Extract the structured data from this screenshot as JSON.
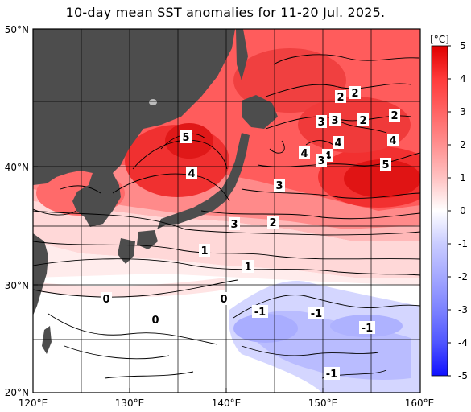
{
  "title": "10-day mean SST anomalies for 11-20 Jul. 2025.",
  "colors": {
    "land": "#4d4d4d",
    "grid": "#000000",
    "contour": "#000000"
  },
  "map": {
    "lat_ticks": [
      "50°N",
      "40°N",
      "30°N",
      "20°N"
    ],
    "lon_ticks": [
      "120°E",
      "130°E",
      "140°E",
      "150°E",
      "160°E"
    ]
  },
  "colorbar": {
    "unit": "[°C]",
    "labels": [
      "5",
      "4",
      "3",
      "2",
      "1",
      "0",
      "-1",
      "-2",
      "-3",
      "-4",
      "-5"
    ],
    "stops": [
      "#e00000",
      "#ff3a3a",
      "#ff7a7a",
      "#ffb0b0",
      "#ffe0e0",
      "#ffffff",
      "#e0e2ff",
      "#b8bcff",
      "#8e93ff",
      "#5c62ff",
      "#1010ff"
    ]
  },
  "contour_labels": [
    "5",
    "4",
    "2",
    "2",
    "3",
    "3",
    "2",
    "2",
    "4",
    "4",
    "4",
    "4",
    "3",
    "5",
    "3",
    "3",
    "2",
    "1",
    "1",
    "0",
    "0",
    "0",
    "-1",
    "-1",
    "-1",
    "-1"
  ]
}
